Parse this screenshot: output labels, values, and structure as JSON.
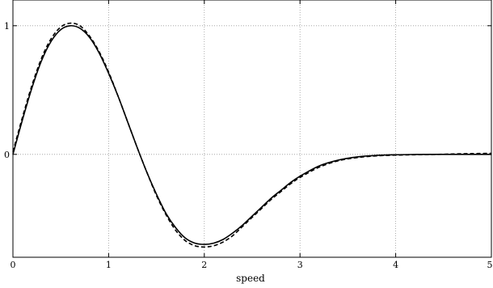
{
  "chart_data": {
    "type": "line",
    "title": "",
    "xlabel": "speed",
    "ylabel": "",
    "xlim": [
      0,
      5
    ],
    "ylim": [
      -0.8,
      1.2
    ],
    "grid": true,
    "x_ticks": [
      0,
      1,
      2,
      3,
      4,
      5
    ],
    "x_tick_labels": [
      "0",
      "1",
      "2",
      "3",
      "4",
      "5"
    ],
    "y_ticks": [
      0,
      1
    ],
    "y_tick_labels": [
      "0",
      "1"
    ],
    "series": [
      {
        "style": "solid",
        "color": "#000000",
        "x": [
          0,
          0.1,
          0.2,
          0.3,
          0.4,
          0.5,
          0.6,
          0.7,
          0.8,
          0.9,
          1.0,
          1.1,
          1.2,
          1.3,
          1.4,
          1.5,
          1.6,
          1.7,
          1.8,
          1.9,
          2.0,
          2.1,
          2.2,
          2.3,
          2.4,
          2.5,
          2.6,
          2.7,
          2.8,
          2.9,
          3.0,
          3.2,
          3.4,
          3.6,
          3.8,
          4.0,
          4.2,
          4.4,
          4.6,
          4.8,
          5.0
        ],
        "y": [
          0,
          0.27,
          0.52,
          0.73,
          0.88,
          0.97,
          1.0,
          0.98,
          0.91,
          0.79,
          0.63,
          0.45,
          0.25,
          0.05,
          -0.14,
          -0.31,
          -0.46,
          -0.57,
          -0.65,
          -0.69,
          -0.7,
          -0.69,
          -0.66,
          -0.61,
          -0.55,
          -0.48,
          -0.41,
          -0.34,
          -0.28,
          -0.22,
          -0.17,
          -0.09,
          -0.045,
          -0.02,
          -0.008,
          -0.003,
          -0.001,
          0,
          0,
          0,
          0
        ]
      },
      {
        "style": "dashed",
        "color": "#000000",
        "x": [
          0,
          0.1,
          0.2,
          0.3,
          0.4,
          0.5,
          0.6,
          0.7,
          0.8,
          0.9,
          1.0,
          1.1,
          1.2,
          1.3,
          1.4,
          1.5,
          1.6,
          1.7,
          1.8,
          1.9,
          2.0,
          2.1,
          2.2,
          2.3,
          2.4,
          2.5,
          2.6,
          2.7,
          2.8,
          2.9,
          3.0,
          3.2,
          3.4,
          3.6,
          3.8,
          4.0,
          4.2,
          4.4,
          4.6,
          4.8,
          5.0
        ],
        "y": [
          0.02,
          0.29,
          0.54,
          0.75,
          0.9,
          0.99,
          1.02,
          1.0,
          0.92,
          0.8,
          0.64,
          0.45,
          0.25,
          0.05,
          -0.14,
          -0.32,
          -0.47,
          -0.59,
          -0.67,
          -0.71,
          -0.72,
          -0.71,
          -0.68,
          -0.63,
          -0.56,
          -0.49,
          -0.42,
          -0.35,
          -0.29,
          -0.23,
          -0.18,
          -0.1,
          -0.05,
          -0.025,
          -0.012,
          -0.006,
          -0.003,
          -0.001,
          0.003,
          0.006,
          0.008
        ]
      }
    ]
  }
}
